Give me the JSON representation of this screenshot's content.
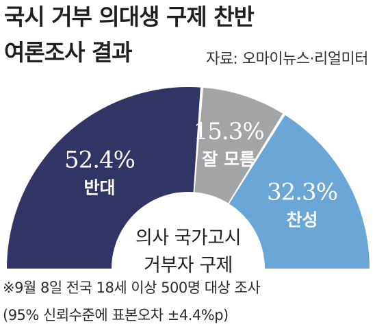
{
  "header": {
    "title_line1": "국시 거부 의대생 구제 찬반",
    "title_line2": "여론조사 결과",
    "source": "자료: 오마이뉴스·리얼미터"
  },
  "chart_data": {
    "type": "pie",
    "style": "half-donut",
    "center_label": [
      "의사 국가고시",
      "거부자 구제"
    ],
    "slices": [
      {
        "label": "반대",
        "value": 52.4,
        "value_text": "52.4%",
        "color": "#323466"
      },
      {
        "label": "잘 모름",
        "value": 15.3,
        "value_text": "15.3%",
        "color": "#a3a4a6"
      },
      {
        "label": "찬성",
        "value": 32.3,
        "value_text": "32.3%",
        "color": "#6aa6d6"
      }
    ]
  },
  "footnotes": {
    "line1": "※9월 8일 전국 18세 이상 500명 대상 조사",
    "line2": "(95% 신뢰수준에 표본오차 ±4.4%p)"
  }
}
